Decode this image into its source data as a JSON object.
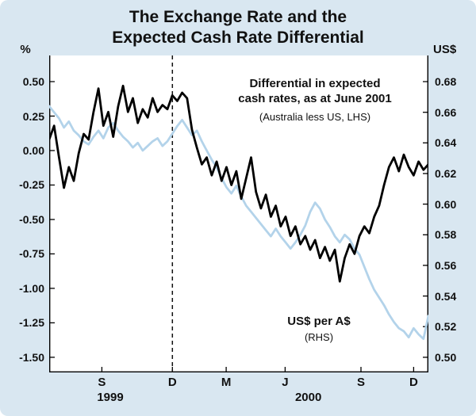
{
  "title": {
    "line1": "The Exchange Rate and the",
    "line2": "Expected Cash Rate Differential"
  },
  "axes": {
    "left_unit": "%",
    "right_unit": "US$"
  },
  "annotations": {
    "diff_line1": "Differential in expected",
    "diff_line2": "cash rates, as at June 2001",
    "diff_sub": "(Australia less US, LHS)",
    "fx_label": "US$ per A$",
    "fx_sub": "(RHS)"
  },
  "colors": {
    "background": "#d9e7f1",
    "plot_background": "#ffffff",
    "differential_line": "#000000",
    "exchange_rate_line": "#b3d3ea",
    "text": "#111111"
  },
  "chart_data": {
    "type": "line",
    "title": "The Exchange Rate and the Expected Cash Rate Differential",
    "x_start": "Jul 1999",
    "x_end": "Dec 2000",
    "x_span_months": 18,
    "dashed_line_month": 5.85,
    "grid": false,
    "left_axis": {
      "unit": "%",
      "ticks": [
        0.5,
        0.25,
        0.0,
        -0.25,
        -0.5,
        -0.75,
        -1.0,
        -1.25,
        -1.5
      ],
      "lim": [
        -1.61,
        0.69
      ]
    },
    "right_axis": {
      "unit": "US$",
      "ticks": [
        0.68,
        0.66,
        0.64,
        0.62,
        0.6,
        0.58,
        0.56,
        0.54,
        0.52,
        0.5
      ],
      "lim": [
        0.4901,
        0.6971
      ]
    },
    "x_ticks": [
      {
        "label": "S",
        "month": 2.5
      },
      {
        "label": "D",
        "month": 5.85
      },
      {
        "label": "M",
        "month": 8.4
      },
      {
        "label": "J",
        "month": 11.2
      },
      {
        "label": "S",
        "month": 14.8
      },
      {
        "label": "D",
        "month": 17.3
      }
    ],
    "x_years": [
      {
        "label": "1999",
        "month": 2.9
      },
      {
        "label": "2000",
        "month": 12.3
      }
    ],
    "series": [
      {
        "name": "Differential in expected cash rates, as at June 2001 (Australia less US, LHS)",
        "axis": "left",
        "unit": "%",
        "color": "#000000",
        "values": [
          0.08,
          0.18,
          -0.05,
          -0.27,
          -0.12,
          -0.22,
          -0.02,
          0.12,
          0.08,
          0.28,
          0.45,
          0.18,
          0.28,
          0.1,
          0.32,
          0.47,
          0.28,
          0.38,
          0.2,
          0.3,
          0.24,
          0.38,
          0.28,
          0.33,
          0.3,
          0.4,
          0.36,
          0.42,
          0.38,
          0.15,
          0.02,
          -0.1,
          -0.05,
          -0.18,
          -0.08,
          -0.22,
          -0.12,
          -0.25,
          -0.15,
          -0.35,
          -0.2,
          -0.05,
          -0.3,
          -0.42,
          -0.32,
          -0.48,
          -0.4,
          -0.55,
          -0.48,
          -0.62,
          -0.55,
          -0.68,
          -0.62,
          -0.72,
          -0.65,
          -0.78,
          -0.7,
          -0.8,
          -0.72,
          -0.95,
          -0.78,
          -0.68,
          -0.75,
          -0.62,
          -0.55,
          -0.6,
          -0.48,
          -0.4,
          -0.25,
          -0.12,
          -0.05,
          -0.15,
          -0.03,
          -0.12,
          -0.18,
          -0.08,
          -0.14,
          -0.1
        ]
      },
      {
        "name": "US$ per A$ (RHS)",
        "axis": "right",
        "unit": "US$",
        "color": "#b3d3ea",
        "values": [
          0.664,
          0.66,
          0.656,
          0.65,
          0.654,
          0.648,
          0.645,
          0.641,
          0.639,
          0.644,
          0.648,
          0.643,
          0.65,
          0.653,
          0.648,
          0.644,
          0.641,
          0.637,
          0.64,
          0.635,
          0.638,
          0.641,
          0.643,
          0.638,
          0.641,
          0.646,
          0.651,
          0.655,
          0.65,
          0.645,
          0.648,
          0.641,
          0.635,
          0.629,
          0.624,
          0.617,
          0.611,
          0.607,
          0.612,
          0.605,
          0.599,
          0.595,
          0.591,
          0.587,
          0.583,
          0.579,
          0.584,
          0.579,
          0.575,
          0.571,
          0.575,
          0.58,
          0.586,
          0.595,
          0.601,
          0.597,
          0.59,
          0.585,
          0.579,
          0.575,
          0.58,
          0.577,
          0.571,
          0.567,
          0.559,
          0.551,
          0.544,
          0.539,
          0.534,
          0.528,
          0.523,
          0.519,
          0.517,
          0.513,
          0.519,
          0.515,
          0.512,
          0.527
        ]
      }
    ]
  }
}
